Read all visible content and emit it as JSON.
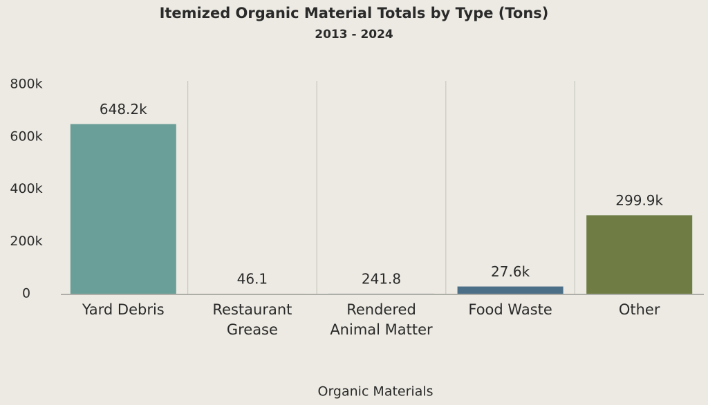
{
  "chart_data": {
    "type": "bar",
    "title": "Itemized Organic Material Totals by Type (Tons)",
    "subtitle": "2013 - 2024",
    "x_label": "Organic Materials",
    "categories": [
      "Yard Debris",
      "Restaurant Grease",
      "Rendered Animal Matter",
      "Food Waste",
      "Other"
    ],
    "values": [
      648200,
      46.1,
      241.8,
      27600,
      299900
    ],
    "value_labels": [
      "648.2k",
      "46.1",
      "241.8",
      "27.6k",
      "299.9k"
    ],
    "colors": [
      "#6a9e98",
      "#b58a5a",
      "#8a7aa8",
      "#4c6f88",
      "#6f7d45"
    ],
    "ylim": [
      0,
      800000
    ],
    "yticks": [
      0,
      {
        "value": 200000,
        "label": "200k"
      },
      {
        "value": 400000,
        "label": "400k"
      },
      {
        "value": 600000,
        "label": "600k"
      },
      {
        "value": 800000,
        "label": "800k"
      }
    ],
    "grid": false
  }
}
